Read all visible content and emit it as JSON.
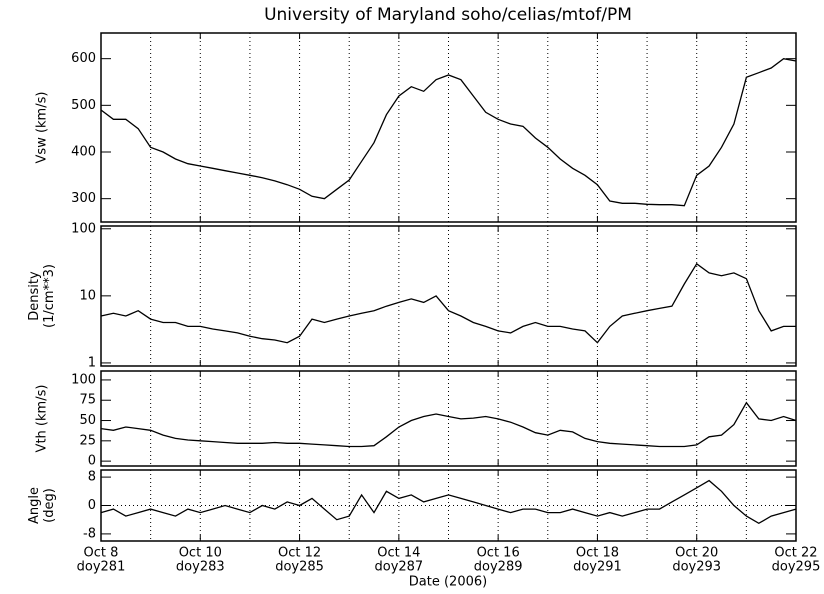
{
  "title": "University of Maryland  soho/celias/mtof/PM",
  "xlabel": "Date (2006)",
  "xlim": [
    0,
    14
  ],
  "xticks": [
    {
      "value": 0,
      "label": "Oct 8"
    },
    {
      "value": 2,
      "label": "Oct 10"
    },
    {
      "value": 4,
      "label": "Oct 12"
    },
    {
      "value": 6,
      "label": "Oct 14"
    },
    {
      "value": 8,
      "label": "Oct 16"
    },
    {
      "value": 10,
      "label": "Oct 18"
    },
    {
      "value": 12,
      "label": "Oct 20"
    },
    {
      "value": 14,
      "label": "Oct 22"
    }
  ],
  "xtick_sublabels": [
    "doy281",
    "doy283",
    "doy285",
    "doy287",
    "doy289",
    "doy291",
    "doy293",
    "doy295"
  ],
  "xgrid": [
    1,
    2,
    3,
    4,
    5,
    6,
    7,
    8,
    9,
    10,
    11,
    12,
    13
  ],
  "chart_data": [
    {
      "type": "line",
      "ylabel": [
        "Vsw (km/s)"
      ],
      "ylim": [
        250,
        655
      ],
      "yticks": [
        300,
        400,
        500,
        600
      ],
      "log": false,
      "x": [
        0,
        0.25,
        0.5,
        0.75,
        1,
        1.25,
        1.5,
        1.75,
        2,
        2.25,
        2.5,
        2.75,
        3,
        3.25,
        3.5,
        3.75,
        4,
        4.25,
        4.5,
        4.75,
        5,
        5.25,
        5.5,
        5.75,
        6,
        6.25,
        6.5,
        6.75,
        7,
        7.25,
        7.5,
        7.75,
        8,
        8.25,
        8.5,
        8.75,
        9,
        9.25,
        9.5,
        9.75,
        10,
        10.25,
        10.5,
        10.75,
        11,
        11.25,
        11.5,
        11.75,
        12,
        12.25,
        12.5,
        12.75,
        13,
        13.25,
        13.5,
        13.75,
        14
      ],
      "series": [
        {
          "color": "#000000",
          "values": [
            490,
            470,
            470,
            450,
            410,
            400,
            385,
            375,
            370,
            365,
            360,
            355,
            350,
            345,
            338,
            330,
            320,
            305,
            300,
            320,
            340,
            380,
            420,
            480,
            520,
            540,
            530,
            555,
            565,
            555,
            520,
            485,
            470,
            460,
            455,
            430,
            410,
            385,
            365,
            350,
            330,
            295,
            290,
            290,
            288,
            287,
            287,
            285,
            350,
            370,
            410,
            460,
            560,
            570,
            580,
            600,
            595
          ]
        }
      ]
    },
    {
      "type": "line",
      "ylabel": [
        "Density",
        "(1/cm**3)"
      ],
      "ylim": [
        0.9,
        110
      ],
      "yticks": [
        1,
        10,
        100
      ],
      "log": true,
      "x": [
        0,
        0.25,
        0.5,
        0.75,
        1,
        1.25,
        1.5,
        1.75,
        2,
        2.25,
        2.5,
        2.75,
        3,
        3.25,
        3.5,
        3.75,
        4,
        4.25,
        4.5,
        4.75,
        5,
        5.25,
        5.5,
        5.75,
        6,
        6.25,
        6.5,
        6.75,
        7,
        7.25,
        7.5,
        7.75,
        8,
        8.25,
        8.5,
        8.75,
        9,
        9.25,
        9.5,
        9.75,
        10,
        10.25,
        10.5,
        10.75,
        11,
        11.25,
        11.5,
        11.75,
        12,
        12.25,
        12.5,
        12.75,
        13,
        13.25,
        13.5,
        13.75,
        14
      ],
      "series": [
        {
          "color": "#000000",
          "values": [
            5,
            5.5,
            5,
            6,
            4.5,
            4,
            4,
            3.5,
            3.5,
            3.2,
            3,
            2.8,
            2.5,
            2.3,
            2.2,
            2,
            2.5,
            4.5,
            4,
            4.5,
            5,
            5.5,
            6,
            7,
            8,
            9,
            8,
            10,
            6,
            5,
            4,
            3.5,
            3,
            2.8,
            3.5,
            4,
            3.5,
            3.5,
            3.2,
            3,
            2,
            3.5,
            5,
            5.5,
            6,
            6.5,
            7,
            15,
            30,
            22,
            20,
            22,
            18,
            6,
            3,
            3.5,
            3.5
          ]
        }
      ]
    },
    {
      "type": "line",
      "ylabel": [
        "Vth (km/s)"
      ],
      "ylim": [
        -6,
        111
      ],
      "yticks": [
        0,
        25,
        50,
        75,
        100
      ],
      "log": false,
      "x": [
        0,
        0.25,
        0.5,
        0.75,
        1,
        1.25,
        1.5,
        1.75,
        2,
        2.25,
        2.5,
        2.75,
        3,
        3.25,
        3.5,
        3.75,
        4,
        4.25,
        4.5,
        4.75,
        5,
        5.25,
        5.5,
        5.75,
        6,
        6.25,
        6.5,
        6.75,
        7,
        7.25,
        7.5,
        7.75,
        8,
        8.25,
        8.5,
        8.75,
        9,
        9.25,
        9.5,
        9.75,
        10,
        10.25,
        10.5,
        10.75,
        11,
        11.25,
        11.5,
        11.75,
        12,
        12.25,
        12.5,
        12.75,
        13,
        13.25,
        13.5,
        13.75,
        14
      ],
      "series": [
        {
          "color": "#000000",
          "values": [
            40,
            38,
            42,
            40,
            38,
            32,
            28,
            26,
            25,
            24,
            23,
            22,
            22,
            22,
            23,
            22,
            22,
            21,
            20,
            19,
            18,
            18,
            19,
            30,
            42,
            50,
            55,
            58,
            55,
            52,
            53,
            55,
            52,
            48,
            42,
            35,
            32,
            38,
            36,
            28,
            24,
            22,
            21,
            20,
            19,
            18,
            18,
            18,
            20,
            30,
            32,
            45,
            72,
            52,
            50,
            55,
            50
          ]
        }
      ]
    },
    {
      "type": "line",
      "ylabel": [
        "Angle",
        "(deg)"
      ],
      "ylim": [
        -10,
        10
      ],
      "yticks": [
        -8,
        0,
        8
      ],
      "log": false,
      "zeroline": true,
      "x": [
        0,
        0.25,
        0.5,
        0.75,
        1,
        1.25,
        1.5,
        1.75,
        2,
        2.25,
        2.5,
        2.75,
        3,
        3.25,
        3.5,
        3.75,
        4,
        4.25,
        4.5,
        4.75,
        5,
        5.25,
        5.5,
        5.75,
        6,
        6.25,
        6.5,
        6.75,
        7,
        7.25,
        7.5,
        7.75,
        8,
        8.25,
        8.5,
        8.75,
        9,
        9.25,
        9.5,
        9.75,
        10,
        10.25,
        10.5,
        10.75,
        11,
        11.25,
        11.5,
        11.75,
        12,
        12.25,
        12.5,
        12.75,
        13,
        13.25,
        13.5,
        13.75,
        14
      ],
      "series": [
        {
          "color": "#000000",
          "values": [
            -2,
            -1,
            -3,
            -2,
            -1,
            -2,
            -3,
            -1,
            -2,
            -1,
            0,
            -1,
            -2,
            0,
            -1,
            1,
            0,
            2,
            -1,
            -4,
            -3,
            3,
            -2,
            4,
            2,
            3,
            1,
            2,
            3,
            2,
            1,
            0,
            -1,
            -2,
            -1,
            -1,
            -2,
            -2,
            -1,
            -2,
            -3,
            -2,
            -3,
            -2,
            -1,
            -1,
            1,
            3,
            5,
            7,
            4,
            0,
            -3,
            -5,
            -3,
            -2,
            -1
          ]
        }
      ]
    }
  ]
}
